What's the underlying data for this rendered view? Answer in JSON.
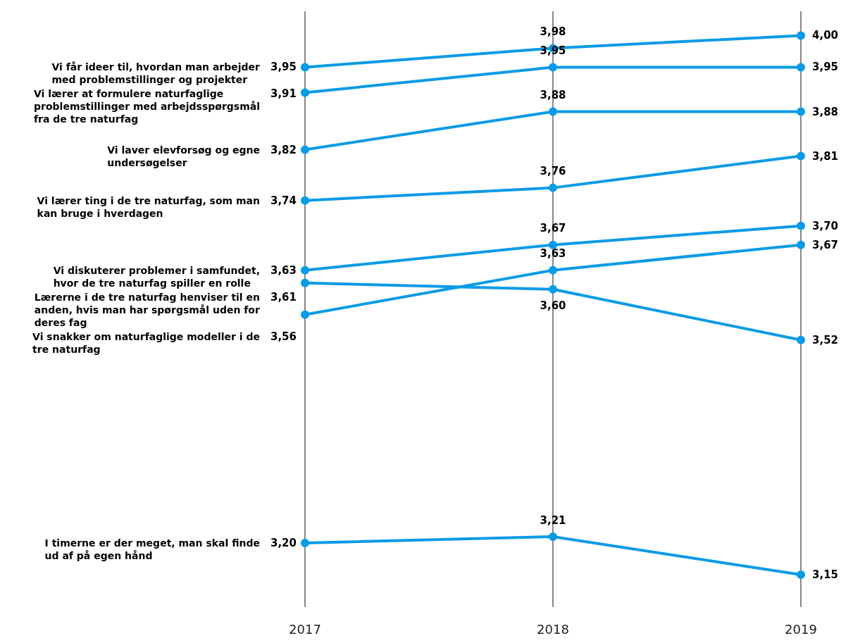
{
  "chart_data": {
    "type": "line",
    "categories": [
      "2017",
      "2018",
      "2019"
    ],
    "tick_labels": "x",
    "grid": "x",
    "marker": "circle",
    "line_style": "solid",
    "series": [
      {
        "name": "Vi får ideer til, hvordan man arbejder med problemstillinger og projekter",
        "color": "#0a9be6",
        "values": [
          3.95,
          3.98,
          4.0
        ],
        "value_labels": [
          "3,95",
          "3,98",
          "4,00"
        ]
      },
      {
        "name": "Vi lærer at formulere naturfaglige problemstillinger med arbejdsspørgsmål fra de tre naturfag",
        "color": "#0a9be6",
        "values": [
          3.91,
          3.95,
          3.95
        ],
        "value_labels": [
          "3,91",
          "3,95",
          "3,95"
        ]
      },
      {
        "name": "Vi laver elevforsøg og egne undersøgelser",
        "color": "#0a9be6",
        "values": [
          3.82,
          3.88,
          3.88
        ],
        "value_labels": [
          "3,82",
          "3,88",
          "3,88"
        ]
      },
      {
        "name": "Vi lærer ting i de tre naturfag, som man kan bruge i hverdagen",
        "color": "#0a9be6",
        "values": [
          3.74,
          3.76,
          3.81
        ],
        "value_labels": [
          "3,74",
          "3,76",
          "3,81"
        ]
      },
      {
        "name": "Vi diskuterer problemer i samfundet, hvor de tre naturfag spiller en rolle",
        "color": "#0a9be6",
        "values": [
          3.63,
          3.67,
          3.7
        ],
        "value_labels": [
          "3,63",
          "3,67",
          "3,70"
        ]
      },
      {
        "name": "Lærerne i de tre naturfag henviser til en anden, hvis man har spørgsmål uden for deres fag",
        "color": "#0a9be6",
        "values": [
          3.61,
          3.6,
          3.52
        ],
        "value_labels": [
          "3,61",
          "3,60",
          "3,52"
        ]
      },
      {
        "name": "Vi snakker om naturfaglige modeller i de tre naturfag",
        "color": "#0a9be6",
        "values": [
          3.56,
          3.63,
          3.67
        ],
        "value_labels": [
          "3,56",
          "3,63",
          "3,67"
        ]
      },
      {
        "name": "I timerne er der meget, man skal finde ud af på egen hånd",
        "color": "#0a9be6",
        "values": [
          3.2,
          3.21,
          3.15
        ],
        "value_labels": [
          "3,20",
          "3,21",
          "3,15"
        ]
      }
    ]
  }
}
